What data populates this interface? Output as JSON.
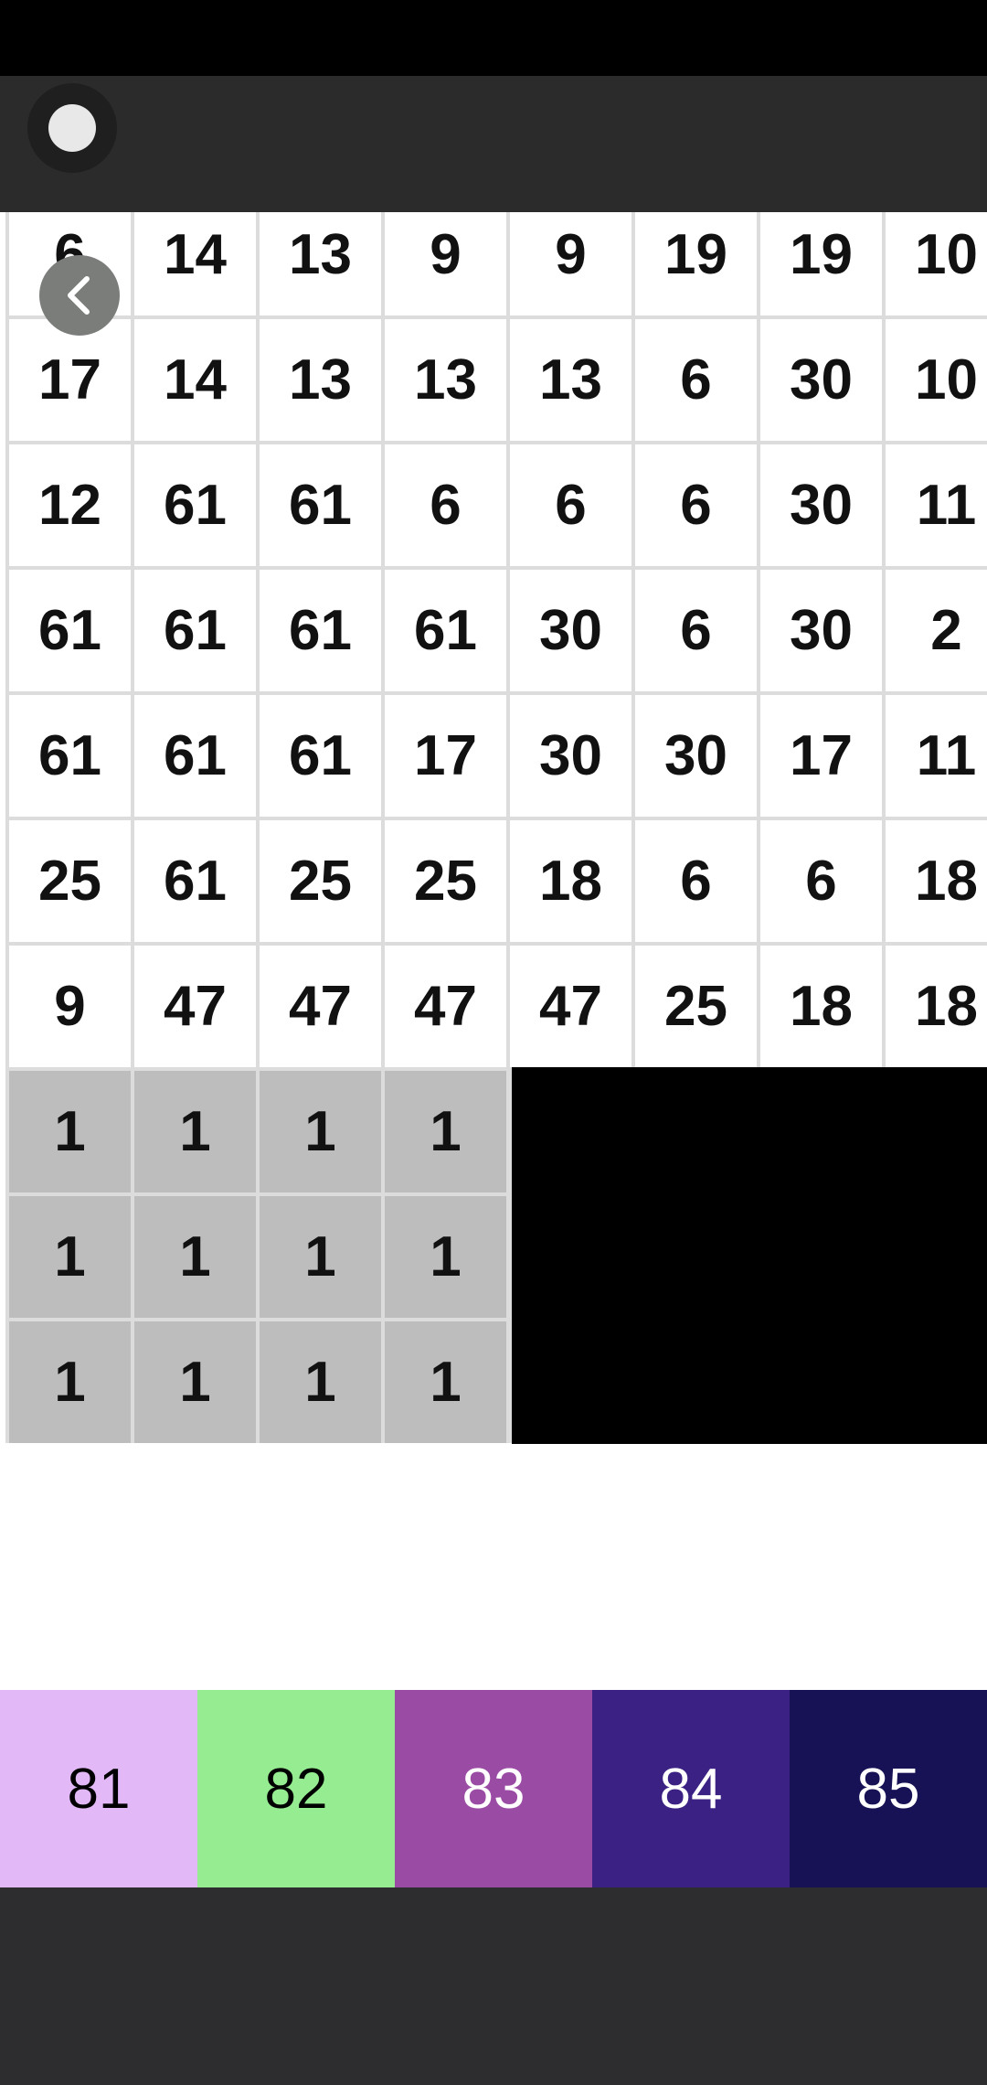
{
  "icons": {
    "menu": "circle-menu-icon",
    "back": "chevron-left-icon"
  },
  "grid": {
    "rows": [
      [
        "6",
        "14",
        "13",
        "9",
        "9",
        "19",
        "19",
        "10"
      ],
      [
        "17",
        "14",
        "13",
        "13",
        "13",
        "6",
        "30",
        "10"
      ],
      [
        "12",
        "61",
        "61",
        "6",
        "6",
        "6",
        "30",
        "11"
      ],
      [
        "61",
        "61",
        "61",
        "61",
        "30",
        "6",
        "30",
        "2"
      ],
      [
        "61",
        "61",
        "61",
        "17",
        "30",
        "30",
        "17",
        "11"
      ],
      [
        "25",
        "61",
        "25",
        "25",
        "18",
        "6",
        "6",
        "18"
      ],
      [
        "9",
        "47",
        "47",
        "47",
        "47",
        "25",
        "18",
        "18"
      ]
    ],
    "gray_rows": [
      [
        "1",
        "1",
        "1",
        "1"
      ],
      [
        "1",
        "1",
        "1",
        "1"
      ],
      [
        "1",
        "1",
        "1",
        "1"
      ]
    ]
  },
  "palette": [
    {
      "label": "81",
      "color": "#e2b8f7",
      "text_color": "#000000"
    },
    {
      "label": "82",
      "color": "#96ec90",
      "text_color": "#000000"
    },
    {
      "label": "83",
      "color": "#9a4ca5",
      "text_color": "#ffffff"
    },
    {
      "label": "84",
      "color": "#3b2183",
      "text_color": "#ffffff"
    },
    {
      "label": "85",
      "color": "#161255",
      "text_color": "#ffffff"
    }
  ]
}
